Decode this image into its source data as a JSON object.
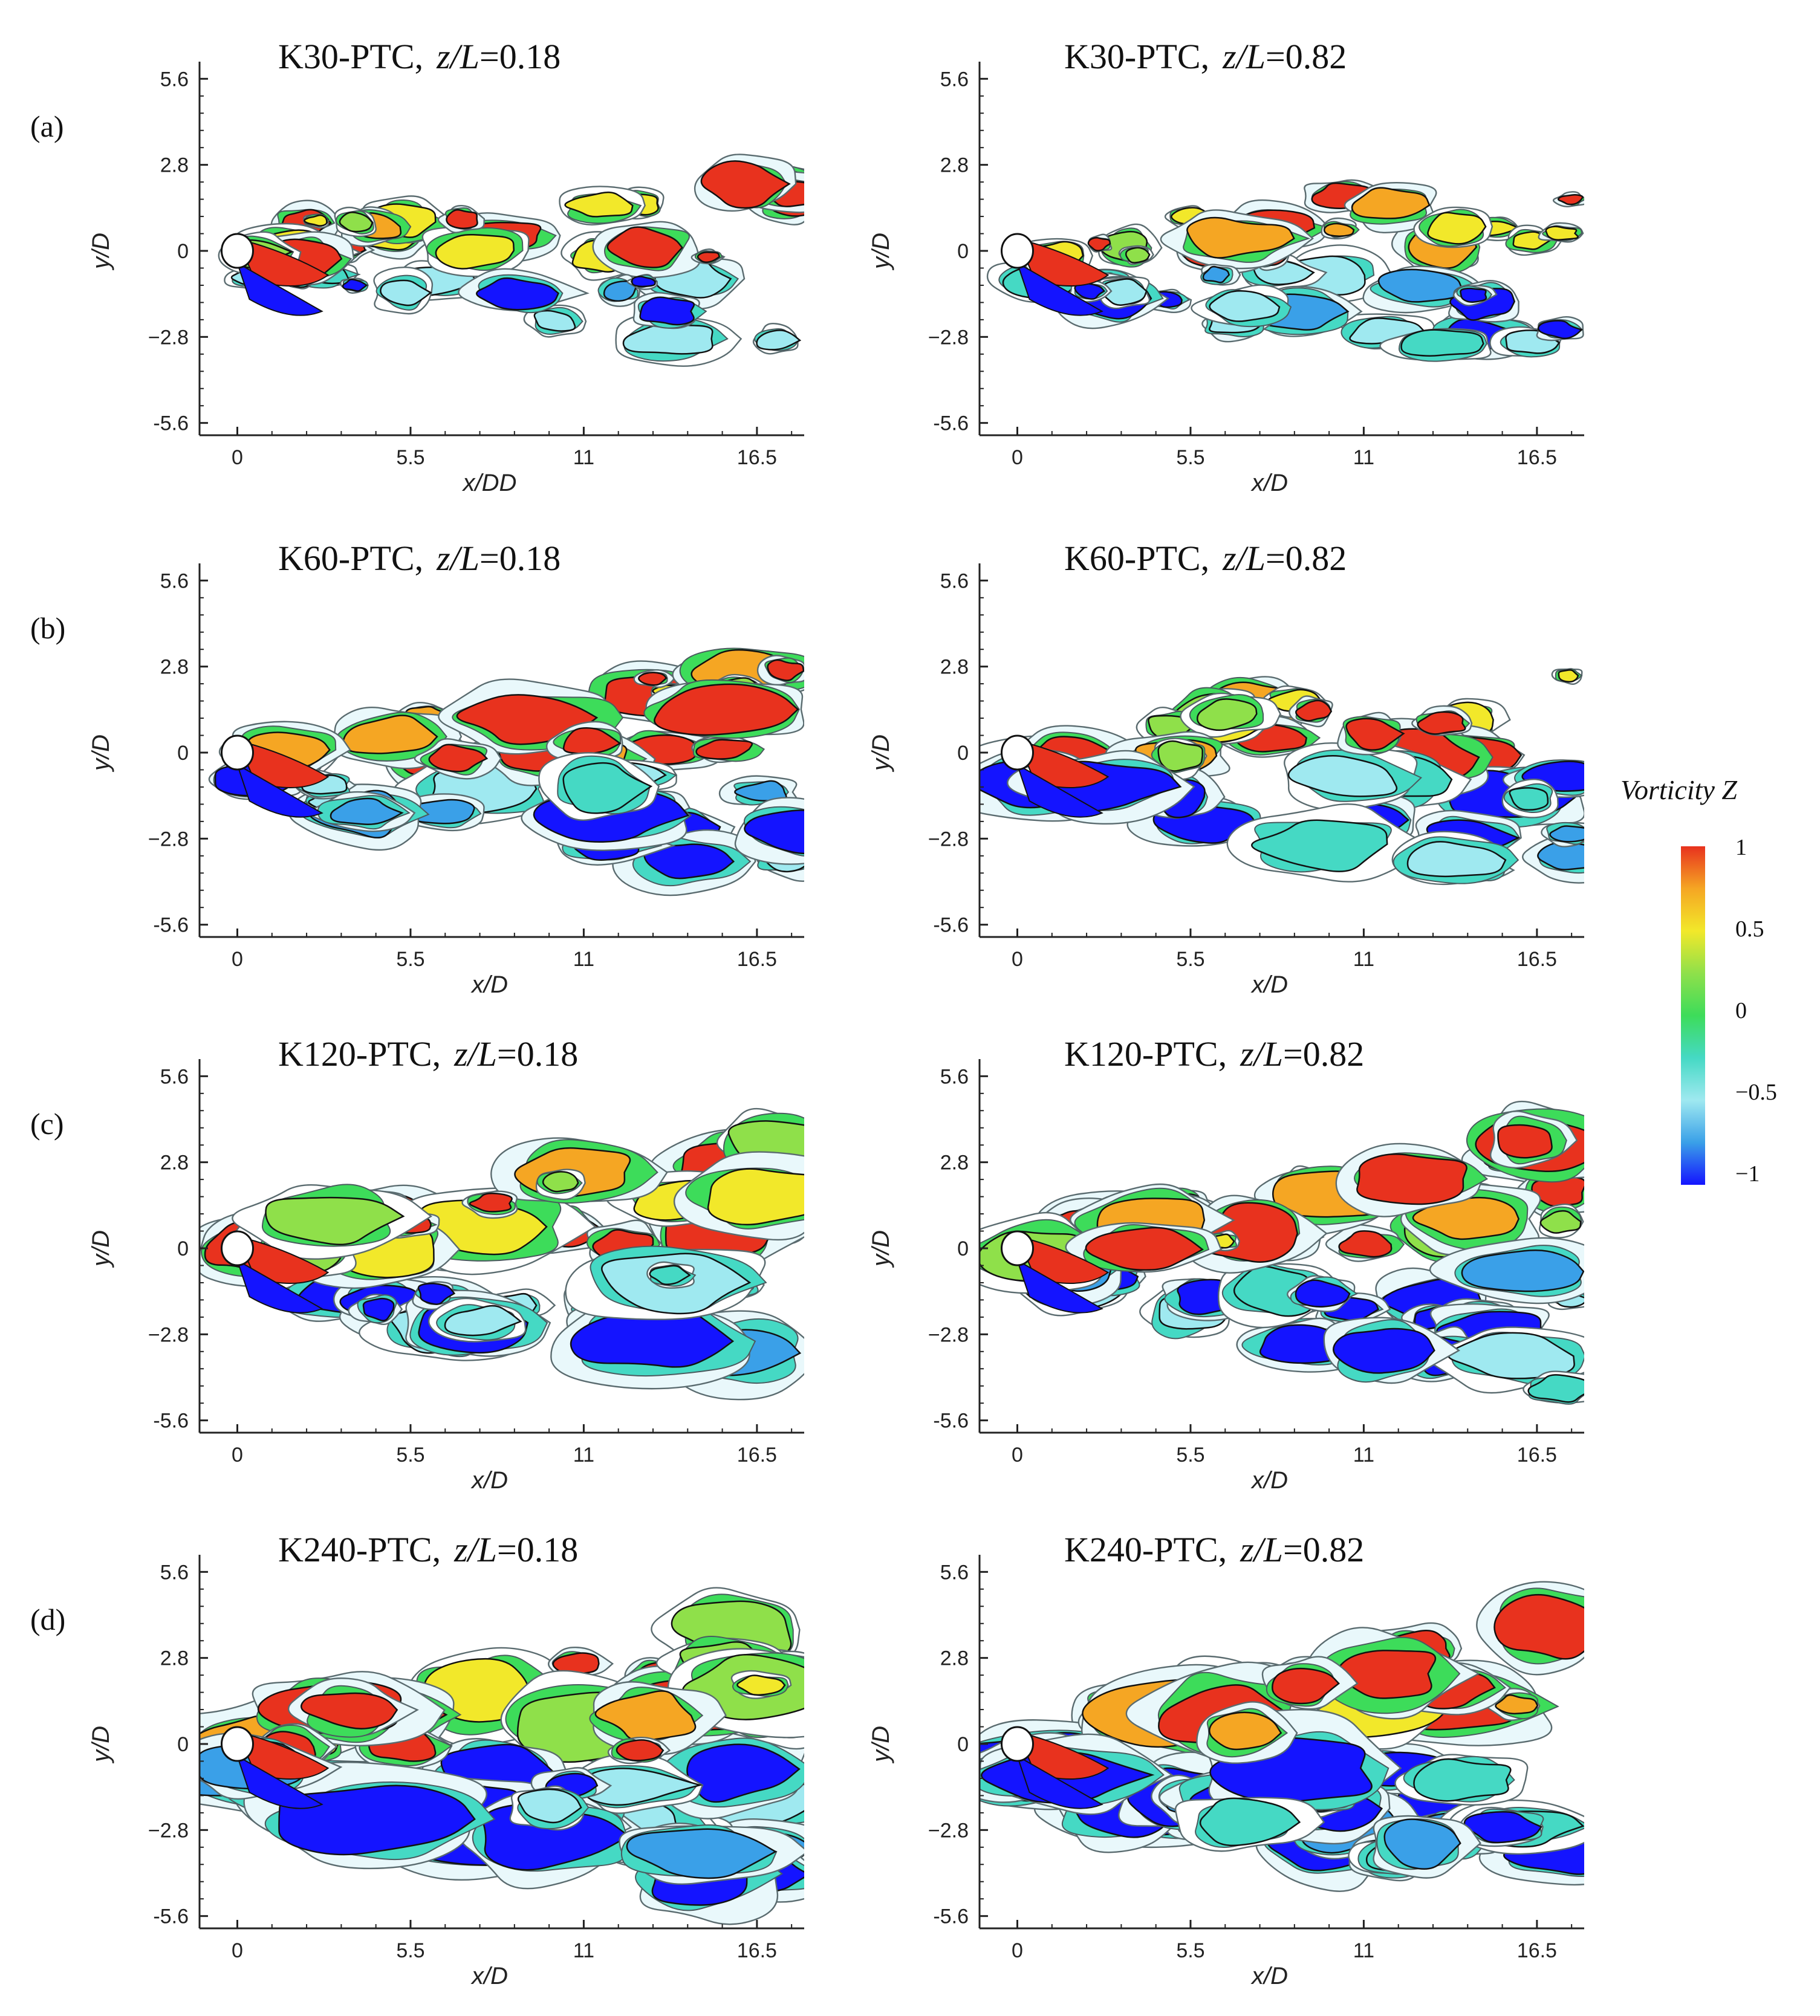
{
  "chart_data": [
    {
      "type": "heatmap",
      "row_label": "(a)",
      "case": "K30-PTC",
      "z_label": "z/L",
      "z_value": "0.18",
      "title_sep": ",",
      "xlabel": "x/DD",
      "ylabel": "y/D",
      "xticks": [
        "0",
        "5.5",
        "11",
        "16.5"
      ],
      "yticks": [
        "5.6",
        "2.8",
        "0",
        "−2.8",
        "-5.6"
      ],
      "xlim": [
        -1.2,
        18.0
      ],
      "ylim": [
        -6.0,
        6.0
      ]
    },
    {
      "type": "heatmap",
      "row_label": "",
      "case": "K30-PTC",
      "z_label": "z/L",
      "z_value": "0.82",
      "title_sep": ",",
      "xlabel": "x/D",
      "ylabel": "y/D",
      "xticks": [
        "0",
        "5.5",
        "11",
        "16.5"
      ],
      "yticks": [
        "5.6",
        "2.8",
        "0",
        "−2.8",
        "-5.6"
      ],
      "xlim": [
        -1.2,
        18.0
      ],
      "ylim": [
        -6.0,
        6.0
      ]
    },
    {
      "type": "heatmap",
      "row_label": "(b)",
      "case": "K60-PTC",
      "z_label": "z/L",
      "z_value": "0.18",
      "title_sep": ",",
      "xlabel": "x/D",
      "ylabel": "y/D",
      "xticks": [
        "0",
        "5.5",
        "11",
        "16.5"
      ],
      "yticks": [
        "5.6",
        "2.8",
        "0",
        "−2.8",
        "-5.6"
      ],
      "xlim": [
        -1.2,
        18.0
      ],
      "ylim": [
        -6.0,
        6.0
      ]
    },
    {
      "type": "heatmap",
      "row_label": "",
      "case": "K60-PTC",
      "z_label": "z/L",
      "z_value": "0.82",
      "title_sep": ",",
      "xlabel": "x/D",
      "ylabel": "y/D",
      "xticks": [
        "0",
        "5.5",
        "11",
        "16.5"
      ],
      "yticks": [
        "5.6",
        "2.8",
        "0",
        "−2.8",
        "-5.6"
      ],
      "xlim": [
        -1.2,
        18.0
      ],
      "ylim": [
        -6.0,
        6.0
      ]
    },
    {
      "type": "heatmap",
      "row_label": "(c)",
      "case": "K120-PTC",
      "z_label": "z/L",
      "z_value": "0.18",
      "title_sep": ",",
      "xlabel": "x/D",
      "ylabel": "y/D",
      "xticks": [
        "0",
        "5.5",
        "11",
        "16.5"
      ],
      "yticks": [
        "5.6",
        "2.8",
        "0",
        "−2.8",
        "-5.6"
      ],
      "xlim": [
        -1.2,
        18.0
      ],
      "ylim": [
        -6.0,
        6.0
      ]
    },
    {
      "type": "heatmap",
      "row_label": "",
      "case": "K120-PTC",
      "z_label": "z/L",
      "z_value": "0.82",
      "title_sep": ",",
      "xlabel": "x/D",
      "ylabel": "y/D",
      "xticks": [
        "0",
        "5.5",
        "11",
        "16.5"
      ],
      "yticks": [
        "5.6",
        "2.8",
        "0",
        "−2.8",
        "-5.6"
      ],
      "xlim": [
        -1.2,
        18.0
      ],
      "ylim": [
        -6.0,
        6.0
      ]
    },
    {
      "type": "heatmap",
      "row_label": "(d)",
      "case": "K240-PTC",
      "z_label": "z/L",
      "z_value": "0.18",
      "title_sep": ",",
      "xlabel": "x/D",
      "ylabel": "y/D",
      "xticks": [
        "0",
        "5.5",
        "11",
        "16.5"
      ],
      "yticks": [
        "5.6",
        "2.8",
        "0",
        "−2.8",
        "-5.6"
      ],
      "xlim": [
        -1.2,
        18.0
      ],
      "ylim": [
        -6.0,
        6.0
      ]
    },
    {
      "type": "heatmap",
      "row_label": "",
      "case": "K240-PTC",
      "z_label": "z/L",
      "z_value": "0.82",
      "title_sep": ",",
      "xlabel": "x/D",
      "ylabel": "y/D",
      "xticks": [
        "0",
        "5.5",
        "11",
        "16.5"
      ],
      "yticks": [
        "5.6",
        "2.8",
        "0",
        "−2.8",
        "-5.6"
      ],
      "xlim": [
        -1.2,
        18.0
      ],
      "ylim": [
        -6.0,
        6.0
      ]
    }
  ],
  "colorbar": {
    "title": "Vorticity Z",
    "ticks": [
      "1",
      "0.5",
      "0",
      "−0.5",
      "−1"
    ],
    "range": [
      -1,
      1
    ],
    "colors": [
      "#e8321e",
      "#f5a623",
      "#f2e82a",
      "#8fe04a",
      "#3ddc5a",
      "#45d9c4",
      "#9fe9f0",
      "#3aa0e8",
      "#1414ff"
    ]
  }
}
